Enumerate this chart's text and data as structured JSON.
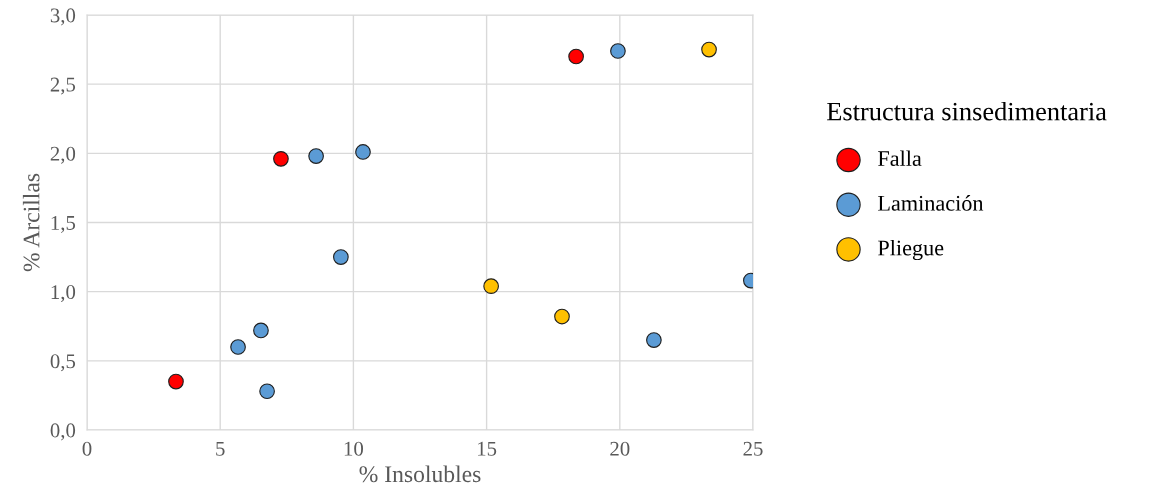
{
  "chart_data": {
    "type": "scatter",
    "xlabel": "% Insolubles",
    "ylabel": "% Arcillas",
    "legend_title": "Estructura sinsedimentaria",
    "xlim": [
      0,
      25
    ],
    "xticks": [
      0,
      5,
      10,
      15,
      20,
      25
    ],
    "ylim": [
      0,
      3.0
    ],
    "yticks": [
      {
        "value": 0,
        "label": "0,0"
      },
      {
        "value": 0.5,
        "label": "0,5"
      },
      {
        "value": 1.0,
        "label": "1,0"
      },
      {
        "value": 1.5,
        "label": "1,5"
      },
      {
        "value": 2.0,
        "label": "2,0"
      },
      {
        "value": 2.5,
        "label": "2,5"
      },
      {
        "value": 3.0,
        "label": "3,0"
      }
    ],
    "grid": true,
    "legend": "right",
    "marker": "circle",
    "series": [
      {
        "name": "Falla",
        "color": "#ff0000",
        "x": [
          3.34,
          7.28,
          18.36
        ],
        "values": [
          0.35,
          1.96,
          2.7
        ]
      },
      {
        "name": "Laminación",
        "color": "#5b9bd5",
        "x": [
          5.67,
          6.53,
          6.76,
          8.6,
          10.36,
          9.53,
          19.93,
          21.28,
          24.92
        ],
        "values": [
          0.6,
          0.72,
          0.28,
          1.98,
          2.01,
          1.25,
          2.74,
          0.65,
          1.08
        ]
      },
      {
        "name": "Pliegue",
        "color": "#ffc000",
        "x": [
          15.17,
          17.83,
          23.35
        ],
        "values": [
          1.04,
          0.82,
          2.75
        ]
      }
    ]
  }
}
